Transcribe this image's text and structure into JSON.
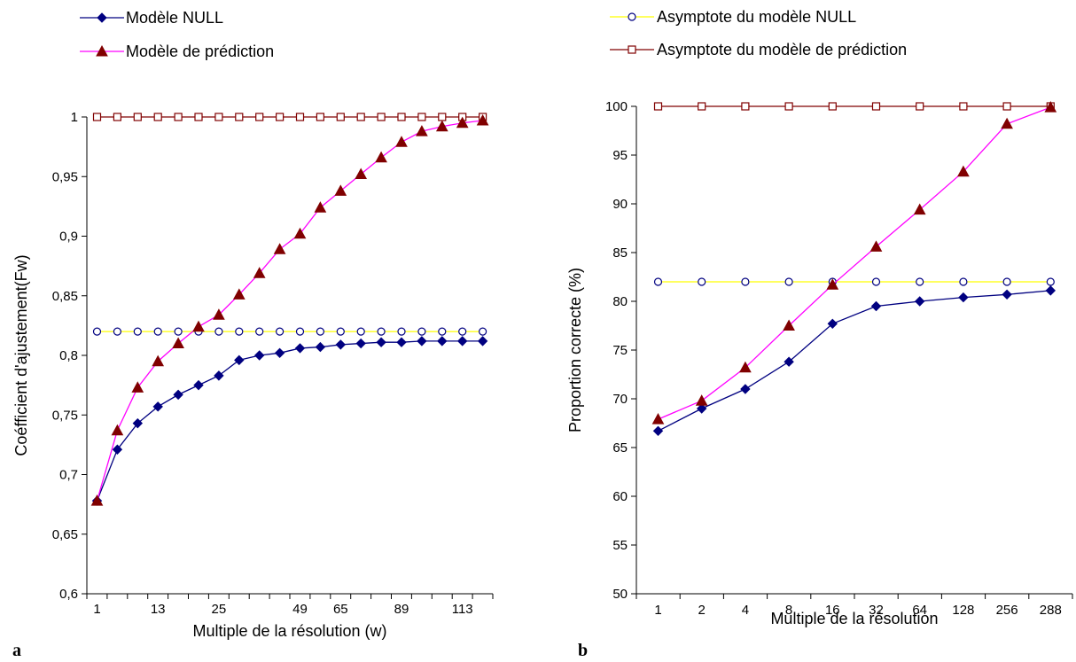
{
  "legend_left": [
    {
      "label": "Modèle NULL",
      "color": "#000080",
      "marker": "diamond-filled"
    },
    {
      "label": "Modèle de prédiction",
      "color": "#FF00FF",
      "marker": "triangle-filled",
      "marker_color": "#800000"
    }
  ],
  "legend_right": [
    {
      "label": "Asymptote du modèle NULL",
      "color": "#FFFF00",
      "marker": "circle-open",
      "marker_color": "#000080"
    },
    {
      "label": "Asymptote du modèle de prédiction",
      "color": "#800000",
      "marker": "square-open"
    }
  ],
  "chart_data": [
    {
      "type": "line",
      "panel_label": "a",
      "xlabel": "Multiple de la résolution (w)",
      "ylabel": "Coéfficient d'ajustement(Fw)",
      "ylim": [
        0.6,
        1
      ],
      "yticks": [
        "0,6",
        "0,65",
        "0,7",
        "0,75",
        "0,8",
        "0,85",
        "0,9",
        "0,95",
        "1"
      ],
      "ytick_values": [
        0.6,
        0.65,
        0.7,
        0.75,
        0.8,
        0.85,
        0.9,
        0.95,
        1
      ],
      "x": [
        1,
        5,
        9,
        13,
        17,
        21,
        25,
        29,
        33,
        41,
        49,
        57,
        65,
        73,
        81,
        89,
        97,
        105,
        113,
        121
      ],
      "xtick_labels": [
        "1",
        "13",
        "25",
        "49",
        "65",
        "89",
        "113"
      ],
      "grid": false,
      "series": [
        {
          "name": "Modèle NULL",
          "color": "#000080",
          "marker": "diamond",
          "values": [
            0.678,
            0.721,
            0.743,
            0.757,
            0.767,
            0.775,
            0.783,
            0.796,
            0.8,
            0.802,
            0.806,
            0.807,
            0.809,
            0.81,
            0.811,
            0.811,
            0.812,
            0.812,
            0.812,
            0.812
          ]
        },
        {
          "name": "Modèle de prédiction",
          "color": "#FF00FF",
          "marker": "triangle",
          "marker_color": "#800000",
          "values": [
            0.678,
            0.737,
            0.773,
            0.795,
            0.81,
            0.824,
            0.834,
            0.851,
            0.869,
            0.889,
            0.902,
            0.924,
            0.938,
            0.952,
            0.966,
            0.979,
            0.988,
            0.992,
            0.995,
            0.997
          ]
        },
        {
          "name": "Asymptote du modèle NULL",
          "color": "#FFFF00",
          "marker": "circle-open",
          "marker_color": "#000080",
          "values": [
            0.82,
            0.82,
            0.82,
            0.82,
            0.82,
            0.82,
            0.82,
            0.82,
            0.82,
            0.82,
            0.82,
            0.82,
            0.82,
            0.82,
            0.82,
            0.82,
            0.82,
            0.82,
            0.82,
            0.82
          ]
        },
        {
          "name": "Asymptote du modèle de prédiction",
          "color": "#800000",
          "marker": "square-open",
          "values": [
            1,
            1,
            1,
            1,
            1,
            1,
            1,
            1,
            1,
            1,
            1,
            1,
            1,
            1,
            1,
            1,
            1,
            1,
            1,
            1
          ]
        }
      ]
    },
    {
      "type": "line",
      "panel_label": "b",
      "xlabel": "Multiple de la résolution",
      "ylabel": "Proportion correcte (%)",
      "ylim": [
        50,
        100
      ],
      "yticks": [
        "50",
        "55",
        "60",
        "65",
        "70",
        "75",
        "80",
        "85",
        "90",
        "95",
        "100"
      ],
      "ytick_values": [
        50,
        55,
        60,
        65,
        70,
        75,
        80,
        85,
        90,
        95,
        100
      ],
      "categories": [
        "1",
        "2",
        "4",
        "8",
        "16",
        "32",
        "64",
        "128",
        "256",
        "288"
      ],
      "grid": false,
      "series": [
        {
          "name": "Modèle NULL",
          "color": "#000080",
          "marker": "diamond",
          "values": [
            66.7,
            69.0,
            71.0,
            73.8,
            77.7,
            79.5,
            80.0,
            80.4,
            80.7,
            81.1
          ]
        },
        {
          "name": "Modèle de prédiction",
          "color": "#FF00FF",
          "marker": "triangle",
          "marker_color": "#800000",
          "values": [
            67.9,
            69.8,
            73.2,
            77.5,
            81.7,
            85.6,
            89.4,
            93.3,
            98.2,
            99.9
          ]
        },
        {
          "name": "Asymptote du modèle NULL",
          "color": "#FFFF00",
          "marker": "circle-open",
          "marker_color": "#000080",
          "values": [
            82,
            82,
            82,
            82,
            82,
            82,
            82,
            82,
            82,
            82
          ]
        },
        {
          "name": "Asymptote du modèle de prédiction",
          "color": "#800000",
          "marker": "square-open",
          "values": [
            100,
            100,
            100,
            100,
            100,
            100,
            100,
            100,
            100,
            100
          ]
        }
      ]
    }
  ]
}
